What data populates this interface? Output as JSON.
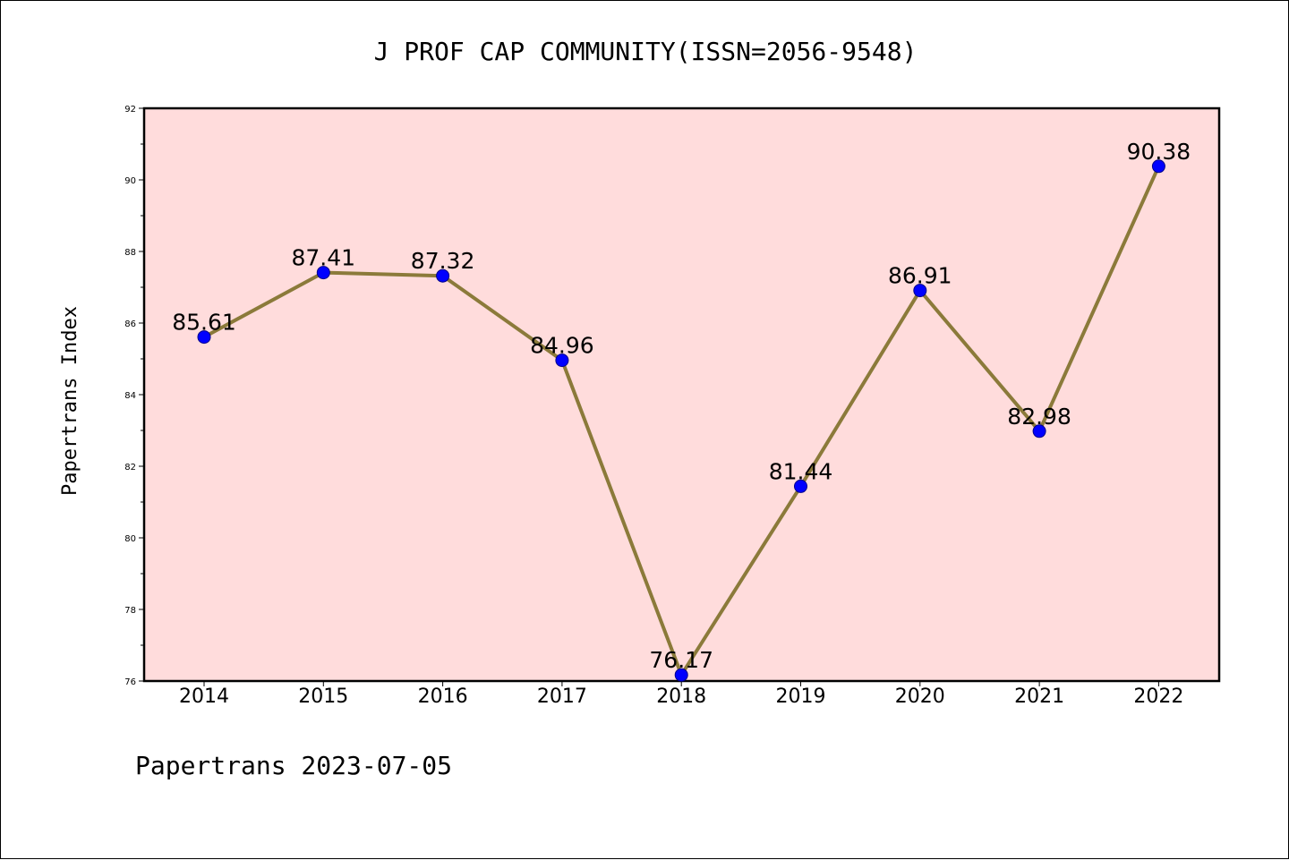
{
  "chart_data": {
    "type": "line",
    "title": "J PROF CAP COMMUNITY(ISSN=2056-9548)",
    "xlabel": "",
    "ylabel": "Papertrans Index",
    "footer": "Papertrans 2023-07-05",
    "categories": [
      "2014",
      "2015",
      "2016",
      "2017",
      "2018",
      "2019",
      "2020",
      "2021",
      "2022"
    ],
    "series": [
      {
        "values": [
          85.61,
          87.41,
          87.32,
          84.96,
          76.17,
          81.44,
          86.91,
          82.98,
          90.38
        ],
        "labels": [
          "85.61",
          "87.41",
          "87.32",
          "84.96",
          "76.17",
          "81.44",
          "86.91",
          "82.98",
          "90.38"
        ]
      }
    ],
    "ylim": [
      76,
      92
    ],
    "yticks": [
      "76",
      "78",
      "80",
      "82",
      "84",
      "86",
      "88",
      "90",
      "92"
    ],
    "grid": false,
    "colors": {
      "plot_background": "#ffdcdc",
      "line": "#8b7a3a",
      "marker": "#0000ff",
      "marker_edge": "#00008b"
    }
  }
}
